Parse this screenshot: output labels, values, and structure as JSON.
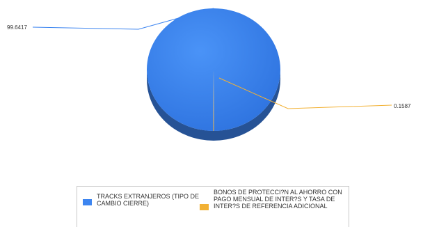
{
  "chart_data": {
    "type": "pie",
    "style": "3d",
    "title": "",
    "legend_position": "bottom",
    "slices": [
      {
        "label": "TRACKS EXTRANJEROS (TIPO DE CAMBIO CIERRE)",
        "value": 99.6417,
        "value_label": "99.6417",
        "color": "#3d85f0"
      },
      {
        "label": "BONOS DE PROTECCI?N AL AHORRO CON PAGO MENSUAL DE INTER?S Y TASA DE INTER?S DE REFERENCIA ADICIONAL",
        "value": 0.1587,
        "value_label": "0.1587",
        "color": "#f2b134"
      }
    ]
  }
}
